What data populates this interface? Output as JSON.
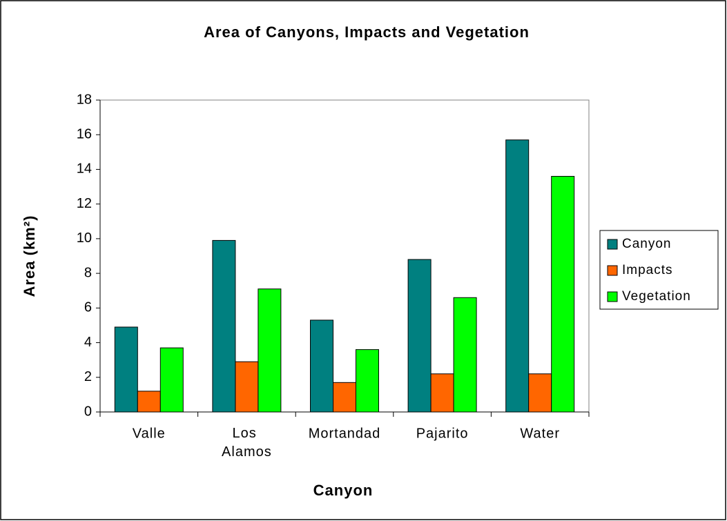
{
  "chart_data": {
    "type": "bar",
    "title": "Area of Canyons, Impacts and Vegetation",
    "x_label": "Canyon",
    "y_label": "Area (km²)",
    "categories": [
      "Valle",
      "Los Alamos",
      "Mortandad",
      "Pajarito",
      "Water"
    ],
    "series": [
      {
        "name": "Canyon",
        "color": "#008080",
        "values": [
          4.9,
          9.9,
          5.3,
          8.8,
          15.7
        ]
      },
      {
        "name": "Impacts",
        "color": "#ff6600",
        "values": [
          1.2,
          2.9,
          1.7,
          2.2,
          2.2
        ]
      },
      {
        "name": "Vegetation",
        "color": "#00ff00",
        "values": [
          3.7,
          7.1,
          3.6,
          6.6,
          13.6
        ]
      }
    ],
    "ylim": [
      0,
      18
    ],
    "yticks": [
      0,
      2,
      4,
      6,
      8,
      10,
      12,
      14,
      16,
      18
    ],
    "grid": false,
    "legend": "right"
  }
}
